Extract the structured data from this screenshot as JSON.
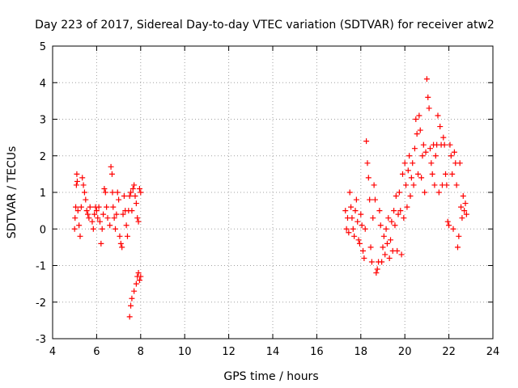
{
  "chart_data": {
    "type": "scatter",
    "title": "Day 223 of 2017, Sidereal Day-to-day VTEC variation (SDTVAR) for receiver atw2",
    "xlabel": "GPS time / hours",
    "ylabel": "SDTVAR / TECUs",
    "xlim": [
      4,
      24
    ],
    "ylim": [
      -3,
      5
    ],
    "x_ticks": [
      4,
      6,
      8,
      10,
      12,
      14,
      16,
      18,
      20,
      22,
      24
    ],
    "y_ticks": [
      -3,
      -2,
      -1,
      0,
      1,
      2,
      3,
      4,
      5
    ],
    "grid": true,
    "marker": "+",
    "series_color": "#ff0000",
    "series": [
      {
        "name": "atw2",
        "points": [
          [
            5.0,
            0.0
          ],
          [
            5.02,
            0.3
          ],
          [
            5.05,
            0.6
          ],
          [
            5.08,
            1.2
          ],
          [
            5.1,
            1.5
          ],
          [
            5.12,
            1.3
          ],
          [
            5.15,
            0.5
          ],
          [
            5.2,
            0.1
          ],
          [
            5.25,
            -0.2
          ],
          [
            5.3,
            0.6
          ],
          [
            5.35,
            1.4
          ],
          [
            5.4,
            1.2
          ],
          [
            5.45,
            1.0
          ],
          [
            5.5,
            0.8
          ],
          [
            5.55,
            0.5
          ],
          [
            5.6,
            0.4
          ],
          [
            5.65,
            0.3
          ],
          [
            5.7,
            0.6
          ],
          [
            5.8,
            0.2
          ],
          [
            5.85,
            0.0
          ],
          [
            5.9,
            0.4
          ],
          [
            5.95,
            0.6
          ],
          [
            6.0,
            0.5
          ],
          [
            6.05,
            0.3
          ],
          [
            6.1,
            0.6
          ],
          [
            6.15,
            0.2
          ],
          [
            6.2,
            -0.4
          ],
          [
            6.25,
            0.0
          ],
          [
            6.3,
            0.4
          ],
          [
            6.35,
            1.1
          ],
          [
            6.4,
            1.0
          ],
          [
            6.45,
            0.6
          ],
          [
            6.5,
            0.3
          ],
          [
            6.6,
            0.1
          ],
          [
            6.65,
            1.7
          ],
          [
            6.7,
            1.5
          ],
          [
            6.72,
            1.0
          ],
          [
            6.75,
            0.6
          ],
          [
            6.8,
            0.3
          ],
          [
            6.85,
            0.0
          ],
          [
            6.9,
            0.4
          ],
          [
            6.95,
            1.0
          ],
          [
            7.0,
            0.8
          ],
          [
            7.05,
            -0.2
          ],
          [
            7.1,
            -0.4
          ],
          [
            7.15,
            -0.5
          ],
          [
            7.2,
            0.4
          ],
          [
            7.25,
            0.9
          ],
          [
            7.3,
            0.5
          ],
          [
            7.35,
            0.1
          ],
          [
            7.4,
            -0.2
          ],
          [
            7.45,
            0.5
          ],
          [
            7.5,
            0.9
          ],
          [
            7.55,
            1.0
          ],
          [
            7.6,
            0.5
          ],
          [
            7.65,
            1.1
          ],
          [
            7.7,
            1.2
          ],
          [
            7.75,
            0.9
          ],
          [
            7.8,
            0.7
          ],
          [
            7.85,
            0.3
          ],
          [
            7.9,
            0.2
          ],
          [
            7.95,
            1.1
          ],
          [
            8.0,
            1.0
          ],
          [
            7.5,
            -2.4
          ],
          [
            7.55,
            -2.1
          ],
          [
            7.6,
            -1.9
          ],
          [
            7.7,
            -1.7
          ],
          [
            7.8,
            -1.5
          ],
          [
            7.85,
            -1.3
          ],
          [
            7.9,
            -1.2
          ],
          [
            7.95,
            -1.4
          ],
          [
            8.0,
            -1.3
          ],
          [
            17.3,
            0.5
          ],
          [
            17.35,
            0.0
          ],
          [
            17.4,
            0.3
          ],
          [
            17.45,
            -0.1
          ],
          [
            17.5,
            1.0
          ],
          [
            17.55,
            0.6
          ],
          [
            17.6,
            0.3
          ],
          [
            17.65,
            0.0
          ],
          [
            17.7,
            -0.2
          ],
          [
            17.75,
            0.5
          ],
          [
            17.8,
            0.8
          ],
          [
            17.85,
            0.2
          ],
          [
            17.9,
            -0.3
          ],
          [
            17.95,
            -0.4
          ],
          [
            18.0,
            0.4
          ],
          [
            18.05,
            0.1
          ],
          [
            18.1,
            -0.6
          ],
          [
            18.15,
            -0.8
          ],
          [
            18.2,
            0.0
          ],
          [
            18.25,
            2.4
          ],
          [
            18.3,
            1.8
          ],
          [
            18.35,
            1.4
          ],
          [
            18.4,
            0.8
          ],
          [
            18.45,
            -0.5
          ],
          [
            18.5,
            -0.9
          ],
          [
            18.55,
            0.3
          ],
          [
            18.6,
            1.2
          ],
          [
            18.65,
            0.8
          ],
          [
            18.7,
            -1.2
          ],
          [
            18.75,
            -1.1
          ],
          [
            18.8,
            -0.9
          ],
          [
            18.85,
            0.5
          ],
          [
            18.9,
            0.1
          ],
          [
            18.95,
            -0.9
          ],
          [
            19.0,
            -0.5
          ],
          [
            19.05,
            -0.2
          ],
          [
            19.1,
            -0.7
          ],
          [
            19.15,
            0.0
          ],
          [
            19.2,
            -0.4
          ],
          [
            19.25,
            0.3
          ],
          [
            19.3,
            -0.8
          ],
          [
            19.35,
            -0.3
          ],
          [
            19.4,
            0.2
          ],
          [
            19.45,
            -0.6
          ],
          [
            19.5,
            0.5
          ],
          [
            19.55,
            0.1
          ],
          [
            19.6,
            0.9
          ],
          [
            19.65,
            -0.6
          ],
          [
            19.7,
            0.4
          ],
          [
            19.75,
            1.0
          ],
          [
            19.8,
            0.5
          ],
          [
            19.85,
            -0.7
          ],
          [
            19.9,
            1.5
          ],
          [
            19.95,
            0.3
          ],
          [
            20.0,
            1.8
          ],
          [
            20.05,
            1.2
          ],
          [
            20.1,
            0.6
          ],
          [
            20.15,
            1.6
          ],
          [
            20.2,
            2.0
          ],
          [
            20.25,
            0.9
          ],
          [
            20.3,
            1.4
          ],
          [
            20.35,
            1.8
          ],
          [
            20.4,
            1.2
          ],
          [
            20.45,
            2.2
          ],
          [
            20.5,
            3.0
          ],
          [
            20.55,
            2.6
          ],
          [
            20.6,
            1.5
          ],
          [
            20.65,
            3.1
          ],
          [
            20.7,
            2.7
          ],
          [
            20.75,
            1.4
          ],
          [
            20.8,
            2.0
          ],
          [
            20.85,
            2.3
          ],
          [
            20.9,
            1.0
          ],
          [
            20.95,
            2.1
          ],
          [
            21.0,
            4.1
          ],
          [
            21.05,
            3.6
          ],
          [
            21.1,
            3.3
          ],
          [
            21.15,
            2.2
          ],
          [
            21.2,
            1.8
          ],
          [
            21.25,
            1.5
          ],
          [
            21.3,
            2.3
          ],
          [
            21.35,
            1.2
          ],
          [
            21.4,
            2.0
          ],
          [
            21.45,
            2.3
          ],
          [
            21.5,
            3.1
          ],
          [
            21.55,
            1.0
          ],
          [
            21.6,
            2.8
          ],
          [
            21.65,
            2.3
          ],
          [
            21.7,
            1.2
          ],
          [
            21.75,
            2.5
          ],
          [
            21.8,
            2.3
          ],
          [
            21.85,
            1.5
          ],
          [
            21.9,
            1.2
          ],
          [
            21.95,
            0.2
          ],
          [
            22.0,
            0.1
          ],
          [
            22.05,
            2.3
          ],
          [
            22.1,
            2.0
          ],
          [
            22.15,
            1.5
          ],
          [
            22.2,
            0.0
          ],
          [
            22.25,
            2.1
          ],
          [
            22.3,
            1.8
          ],
          [
            22.35,
            1.2
          ],
          [
            22.4,
            -0.5
          ],
          [
            22.45,
            -0.2
          ],
          [
            22.5,
            1.8
          ],
          [
            22.55,
            0.6
          ],
          [
            22.6,
            0.3
          ],
          [
            22.65,
            0.9
          ],
          [
            22.7,
            0.5
          ],
          [
            22.75,
            0.7
          ],
          [
            22.8,
            0.4
          ]
        ]
      }
    ]
  }
}
